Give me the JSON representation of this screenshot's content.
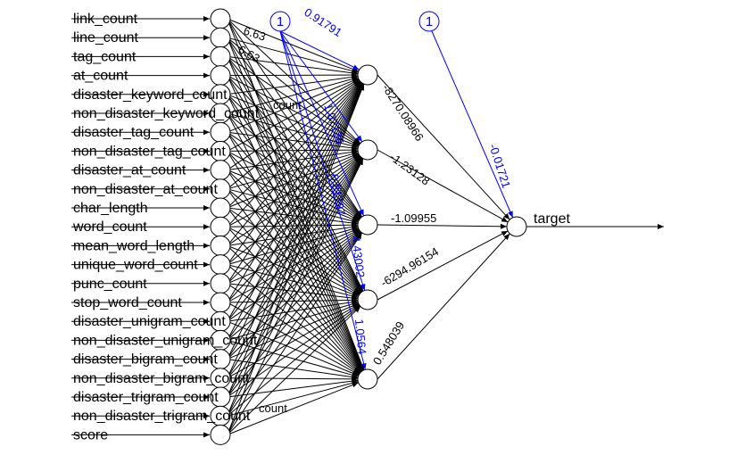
{
  "network": {
    "inputs": [
      "link_count",
      "line_count",
      "tag_count",
      "at_count",
      "disaster_keyword_count",
      "non_disaster_keyword_count",
      "disaster_tag_count",
      "non_disaster_tag_count",
      "disaster_at_count",
      "non_disaster_at_count",
      "char_length",
      "word_count",
      "mean_word_length",
      "unique_word_count",
      "punc_count",
      "stop_word_count",
      "disaster_unigram_count",
      "non_disaster_unigram_count",
      "disaster_bigram_count",
      "non_disaster_bigram_count",
      "disaster_trigram_count",
      "non_disaster_trigram_count",
      "score"
    ],
    "hidden_count": 5,
    "output": "target",
    "bias_labels": [
      "1",
      "1"
    ],
    "hidden_bias_weights": [
      "0.91791",
      "1.07136",
      "0.81797",
      "4.43002",
      "1.0564"
    ],
    "output_weights": [
      "-8270.08966",
      "-1.23128",
      "-1.09955",
      "-6294.96154",
      "0.548039"
    ],
    "output_bias_weight": "-0.01721",
    "input_weight_labels": [
      "6.63",
      "6.63",
      "count",
      "count"
    ]
  },
  "colors": {
    "weights": "#000000",
    "bias": "#0000ff"
  }
}
